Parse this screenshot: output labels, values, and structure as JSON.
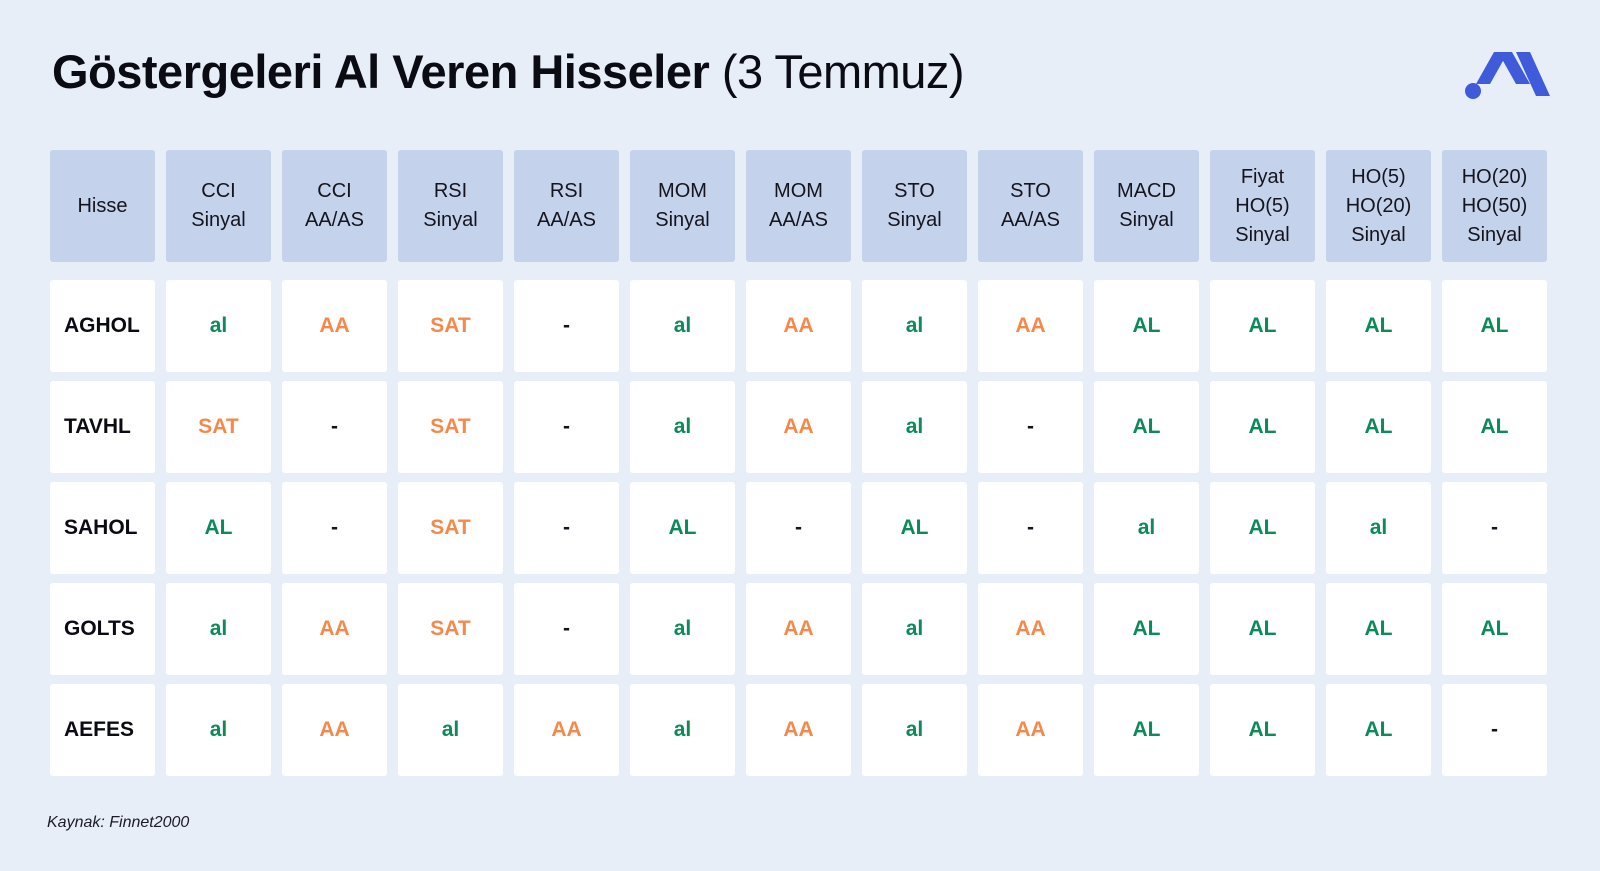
{
  "title": {
    "bold": "Göstergeleri Al Veren Hisseler",
    "light": "(3 Temmuz)"
  },
  "logo": {
    "icon": "brand-logo-icon",
    "color": "#3f5bd9"
  },
  "colors": {
    "background": "#e8eef8",
    "header_cell": "#c5d2ec",
    "green": "#0c8a5a",
    "orange": "#f5894c"
  },
  "table": {
    "headers": [
      "Hisse",
      "CCI\nSinyal",
      "CCI\nAA/AS",
      "RSI\nSinyal",
      "RSI\nAA/AS",
      "MOM\nSinyal",
      "MOM\nAA/AS",
      "STO\nSinyal",
      "STO\nAA/AS",
      "MACD\nSinyal",
      "Fiyat\nHO(5)\nSinyal",
      "HO(5)\nHO(20)\nSinyal",
      "HO(20)\nHO(50)\nSinyal"
    ],
    "rows": [
      {
        "name": "AGHOL",
        "values": [
          "al",
          "AA",
          "SAT",
          "-",
          "al",
          "AA",
          "al",
          "AA",
          "AL",
          "AL",
          "AL",
          "AL"
        ]
      },
      {
        "name": "TAVHL",
        "values": [
          "SAT",
          "-",
          "SAT",
          "-",
          "al",
          "AA",
          "al",
          "-",
          "AL",
          "AL",
          "AL",
          "AL"
        ]
      },
      {
        "name": "SAHOL",
        "values": [
          "AL",
          "-",
          "SAT",
          "-",
          "AL",
          "-",
          "AL",
          "-",
          "al",
          "AL",
          "al",
          "-"
        ]
      },
      {
        "name": "GOLTS",
        "values": [
          "al",
          "AA",
          "SAT",
          "-",
          "al",
          "AA",
          "al",
          "AA",
          "AL",
          "AL",
          "AL",
          "AL"
        ]
      },
      {
        "name": "AEFES",
        "values": [
          "al",
          "AA",
          "al",
          "AA",
          "al",
          "AA",
          "al",
          "AA",
          "AL",
          "AL",
          "AL",
          "-"
        ]
      }
    ]
  },
  "source": "Kaynak: Finnet2000"
}
